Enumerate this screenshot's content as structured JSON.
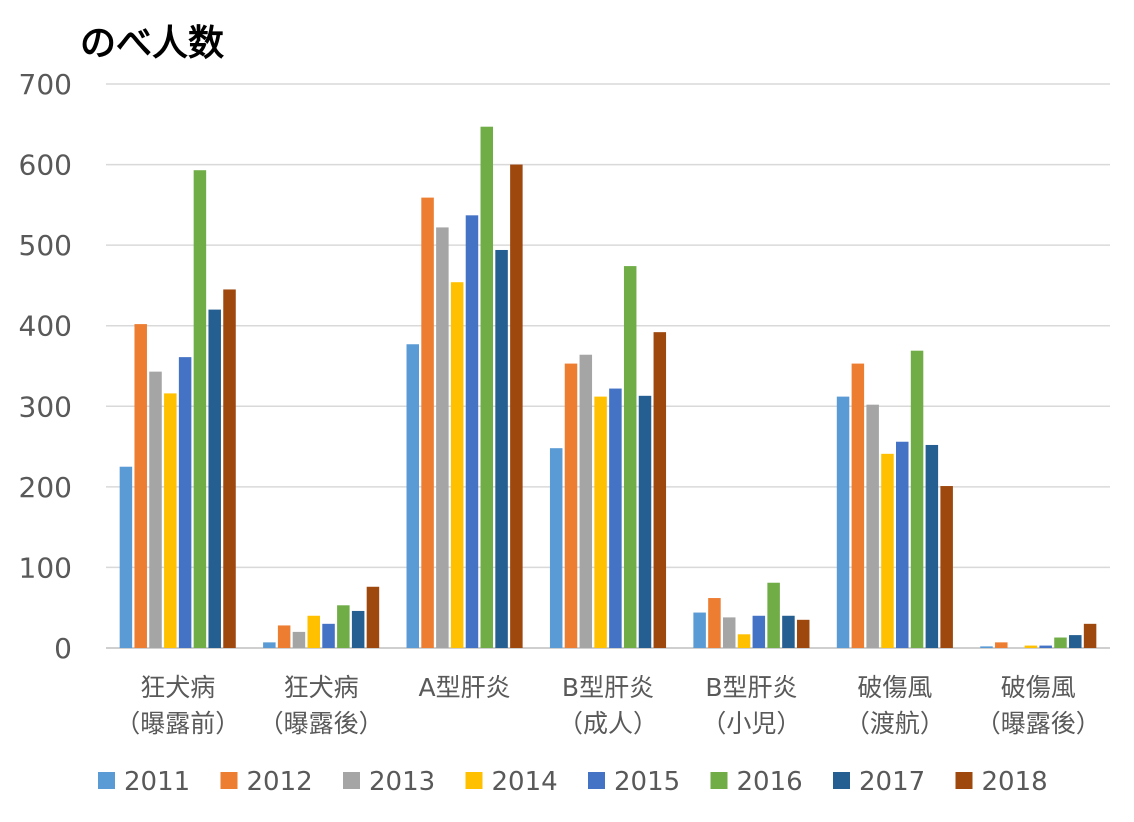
{
  "chart_data": {
    "type": "bar",
    "title": "のべ人数",
    "ylim": [
      0,
      700
    ],
    "yticks": [
      "0",
      "100",
      "200",
      "300",
      "400",
      "500",
      "600",
      "700"
    ],
    "categories": [
      [
        "狂犬病",
        "（曝露前）"
      ],
      [
        "狂犬病",
        "（曝露後）"
      ],
      [
        "A型肝炎"
      ],
      [
        "B型肝炎",
        "（成人）"
      ],
      [
        "B型肝炎",
        "（小児）"
      ],
      [
        "破傷風",
        "（渡航）"
      ],
      [
        "破傷風",
        "（曝露後）"
      ]
    ],
    "series": [
      {
        "name": "2011",
        "color": "#5B9BD5",
        "values": [
          225,
          7,
          377,
          248,
          44,
          312,
          2
        ]
      },
      {
        "name": "2012",
        "color": "#ED7D31",
        "values": [
          402,
          28,
          559,
          353,
          62,
          353,
          7
        ]
      },
      {
        "name": "2013",
        "color": "#A5A5A5",
        "values": [
          343,
          20,
          522,
          364,
          38,
          302,
          0
        ]
      },
      {
        "name": "2014",
        "color": "#FFC000",
        "values": [
          316,
          40,
          454,
          312,
          17,
          241,
          3
        ]
      },
      {
        "name": "2015",
        "color": "#4472C4",
        "values": [
          361,
          30,
          537,
          322,
          40,
          256,
          3
        ]
      },
      {
        "name": "2016",
        "color": "#70AD47",
        "values": [
          593,
          53,
          647,
          474,
          81,
          369,
          13
        ]
      },
      {
        "name": "2017",
        "color": "#255E91",
        "values": [
          420,
          46,
          494,
          313,
          40,
          252,
          16
        ]
      },
      {
        "name": "2018",
        "color": "#9E480E",
        "values": [
          445,
          76,
          600,
          392,
          35,
          201,
          30
        ]
      }
    ],
    "grid": true,
    "legend_position": "bottom"
  }
}
